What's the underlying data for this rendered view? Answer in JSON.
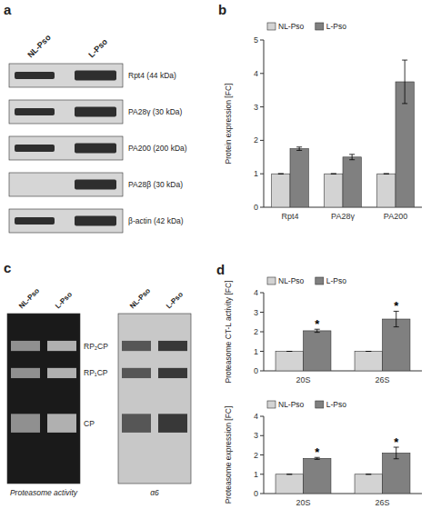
{
  "chart_data": [
    {
      "type": "blot",
      "title": "a",
      "categories": [
        "Rpt4 (44 kDa)",
        "PA28γ (30 kDa)",
        "PA200 (200 kDa)",
        "PA28β (30 kDa)",
        "β-actin (42 kDa)"
      ],
      "series": [
        {
          "name": "NL-Pso",
          "values": [
            true,
            true,
            true,
            false,
            true
          ]
        },
        {
          "name": "L-Pso",
          "values": [
            true,
            true,
            true,
            true,
            true
          ]
        }
      ]
    },
    {
      "type": "bar",
      "title": "b",
      "categories": [
        "Rpt4",
        "PA28γ",
        "PA200"
      ],
      "series": [
        {
          "name": "NL-Pso",
          "color": "#d3d3d3",
          "values": [
            1.0,
            1.0,
            1.0
          ],
          "errors": [
            0.0,
            0.0,
            0.0
          ]
        },
        {
          "name": "L-Pso",
          "color": "#808080",
          "values": [
            1.75,
            1.5,
            3.75
          ],
          "errors": [
            0.05,
            0.08,
            0.65
          ]
        }
      ],
      "ylabel": "Protein expression [FC]",
      "ylim": [
        0,
        5
      ],
      "yticks": [
        0,
        1,
        2,
        3,
        4,
        5
      ],
      "legend": "upper left"
    },
    {
      "type": "gel",
      "title": "c",
      "categories": [
        "RP₂CP",
        "RP₁CP",
        "CP"
      ],
      "series": [
        {
          "name": "Proteasome activity"
        },
        {
          "name": "α6"
        }
      ],
      "annotations": [
        "NL-Pso",
        "L-Pso"
      ]
    },
    {
      "type": "bar",
      "title": "d",
      "categories": [
        "20S",
        "26S"
      ],
      "series": [
        {
          "name": "NL-Pso",
          "color": "#d3d3d3",
          "values": [
            1.0,
            1.0
          ],
          "errors": [
            0.0,
            0.0
          ]
        },
        {
          "name": "L-Pso",
          "color": "#808080",
          "values": [
            2.05,
            2.65
          ],
          "errors": [
            0.08,
            0.4
          ]
        }
      ],
      "ylabel": "Proteasome CT-L activity [FC]",
      "ylim": [
        0,
        4
      ],
      "yticks": [
        0,
        1,
        2,
        3,
        4
      ],
      "annotations": [
        "*",
        "*"
      ],
      "legend": "upper left"
    },
    {
      "type": "bar",
      "categories": [
        "20S",
        "26S"
      ],
      "series": [
        {
          "name": "NL-Pso",
          "color": "#d3d3d3",
          "values": [
            1.0,
            1.0
          ],
          "errors": [
            0.0,
            0.0
          ]
        },
        {
          "name": "L-Pso",
          "color": "#808080",
          "values": [
            1.82,
            2.1
          ],
          "errors": [
            0.05,
            0.3
          ]
        }
      ],
      "ylabel": "Proteasome expression [FC]",
      "ylim": [
        0,
        4
      ],
      "yticks": [
        0,
        1,
        2,
        3,
        4
      ],
      "annotations": [
        "*",
        "*"
      ],
      "legend": "upper left"
    }
  ]
}
